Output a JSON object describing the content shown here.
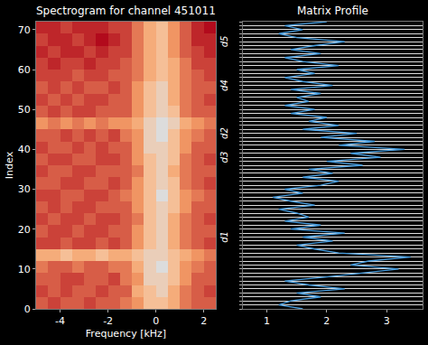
{
  "chart_data": [
    {
      "type": "heatmap",
      "title": "Spectrogram for channel 451011",
      "x_label": "Frequency [kHz]",
      "y_label": "Index",
      "x": [
        -4.75,
        -4.25,
        -3.75,
        -3.25,
        -2.75,
        -2.25,
        -1.75,
        -1.25,
        -0.75,
        -0.25,
        0.25,
        0.75,
        1.25,
        1.75,
        2.25
      ],
      "y": [
        1.5,
        4.5,
        7.5,
        10.5,
        13.5,
        16.5,
        19.5,
        22.5,
        25.5,
        28.5,
        31.5,
        34.5,
        37.5,
        40.5,
        43.5,
        46.5,
        49.5,
        52.5,
        55.5,
        58.5,
        61.5,
        64.5,
        67.5,
        70.5
      ],
      "z": [
        [
          6,
          7,
          6,
          6,
          7,
          6,
          6,
          5,
          4,
          2,
          2,
          3,
          5,
          6,
          6
        ],
        [
          7,
          6,
          7,
          6,
          6,
          7,
          6,
          6,
          3,
          2,
          1,
          3,
          5,
          6,
          7
        ],
        [
          6,
          6,
          7,
          7,
          6,
          6,
          7,
          5,
          4,
          1,
          1,
          2,
          4,
          6,
          6
        ],
        [
          5,
          6,
          6,
          5,
          6,
          6,
          5,
          5,
          3,
          1,
          0,
          2,
          4,
          5,
          6
        ],
        [
          3,
          3,
          2,
          3,
          3,
          2,
          3,
          3,
          2,
          1,
          1,
          2,
          3,
          4,
          5
        ],
        [
          7,
          7,
          6,
          7,
          7,
          6,
          7,
          6,
          4,
          2,
          1,
          3,
          5,
          6,
          7
        ],
        [
          6,
          7,
          7,
          6,
          7,
          7,
          6,
          6,
          4,
          2,
          1,
          3,
          5,
          6,
          6
        ],
        [
          7,
          6,
          7,
          7,
          6,
          7,
          7,
          6,
          5,
          2,
          1,
          3,
          5,
          6,
          7
        ],
        [
          6,
          7,
          6,
          7,
          7,
          6,
          6,
          6,
          4,
          2,
          1,
          2,
          4,
          6,
          6
        ],
        [
          7,
          7,
          6,
          6,
          7,
          7,
          6,
          5,
          4,
          2,
          0,
          2,
          4,
          5,
          6
        ],
        [
          6,
          6,
          7,
          7,
          6,
          6,
          7,
          6,
          4,
          2,
          1,
          2,
          5,
          6,
          7
        ],
        [
          7,
          6,
          6,
          7,
          7,
          6,
          6,
          6,
          5,
          2,
          1,
          3,
          5,
          6,
          6
        ],
        [
          6,
          7,
          7,
          6,
          6,
          7,
          7,
          6,
          4,
          2,
          1,
          2,
          5,
          6,
          7
        ],
        [
          7,
          6,
          6,
          7,
          6,
          7,
          6,
          6,
          4,
          1,
          1,
          2,
          4,
          6,
          6
        ],
        [
          6,
          6,
          7,
          6,
          7,
          6,
          7,
          5,
          4,
          1,
          0,
          2,
          4,
          5,
          6
        ],
        [
          4,
          5,
          4,
          5,
          4,
          5,
          4,
          4,
          3,
          1,
          0,
          1,
          3,
          4,
          5
        ],
        [
          6,
          7,
          6,
          7,
          7,
          6,
          6,
          6,
          4,
          2,
          1,
          2,
          5,
          6,
          6
        ],
        [
          7,
          6,
          7,
          6,
          7,
          7,
          6,
          6,
          4,
          2,
          1,
          3,
          5,
          6,
          7
        ],
        [
          6,
          7,
          6,
          7,
          6,
          6,
          7,
          6,
          4,
          2,
          1,
          3,
          5,
          6,
          6
        ],
        [
          7,
          7,
          7,
          6,
          7,
          7,
          6,
          6,
          5,
          3,
          2,
          3,
          5,
          6,
          7
        ],
        [
          7,
          8,
          7,
          7,
          8,
          7,
          7,
          6,
          5,
          3,
          2,
          3,
          5,
          7,
          7
        ],
        [
          8,
          7,
          8,
          8,
          7,
          8,
          7,
          7,
          5,
          3,
          2,
          4,
          6,
          7,
          8
        ],
        [
          7,
          8,
          8,
          7,
          8,
          9,
          8,
          7,
          5,
          3,
          2,
          4,
          6,
          8,
          8
        ],
        [
          8,
          8,
          7,
          8,
          8,
          8,
          7,
          7,
          5,
          3,
          2,
          4,
          6,
          8,
          9
        ]
      ],
      "xlim": [
        -5,
        2.5
      ],
      "ylim": [
        0,
        72
      ],
      "xticks": [
        -4,
        -2,
        0,
        2
      ],
      "yticks": [
        0,
        10,
        20,
        30,
        40,
        50,
        60,
        70
      ],
      "annotations": [
        {
          "text": "d1",
          "y": 18
        },
        {
          "text": "d3",
          "y": 38
        },
        {
          "text": "d2",
          "y": 44
        },
        {
          "text": "d4",
          "y": 56
        },
        {
          "text": "d5",
          "y": 67
        }
      ]
    },
    {
      "type": "line",
      "title": "Matrix Profile",
      "color": "#4a9fe0",
      "values": [
        1.6,
        1.2,
        1.4,
        1.9,
        1.5,
        2.3,
        1.7,
        1.3,
        2.0,
        2.6,
        3.2,
        2.4,
        2.7,
        3.4,
        2.2,
        1.8,
        1.5,
        2.1,
        1.6,
        2.3,
        1.4,
        1.9,
        1.3,
        1.7,
        1.5,
        1.2,
        1.8,
        1.4,
        1.1,
        1.6,
        1.3,
        1.9,
        2.2,
        1.6,
        2.1,
        1.7,
        2.6,
        2.0,
        2.9,
        2.4,
        3.3,
        2.2,
        2.8,
        1.9,
        2.5,
        1.6,
        2.2,
        1.7,
        2.0,
        1.4,
        1.8,
        1.3,
        1.7,
        1.5,
        1.9,
        1.4,
        2.1,
        1.6,
        1.3,
        1.8,
        1.5,
        2.2,
        1.6,
        1.3,
        1.9,
        1.4,
        1.8,
        2.3,
        1.5,
        1.2,
        1.6,
        1.3,
        2.0
      ],
      "xlim": [
        0.6,
        3.6
      ],
      "ylim": [
        0,
        72
      ],
      "xticks": [
        1,
        2,
        3
      ],
      "yticks": [
        0,
        1,
        2,
        3,
        4,
        5,
        6,
        7,
        8,
        9,
        10,
        11,
        12,
        13,
        14,
        15,
        16,
        17,
        18,
        19,
        20,
        21,
        22,
        23,
        24,
        25,
        26,
        27,
        28,
        29,
        30,
        31,
        32,
        33,
        34,
        35,
        36,
        37,
        38,
        39,
        40,
        41,
        42,
        43,
        44,
        45,
        46,
        47,
        48,
        49,
        50,
        51,
        52,
        53,
        54,
        55,
        56,
        57,
        58,
        59,
        60,
        61,
        62,
        63,
        64,
        65,
        66,
        67,
        68,
        69,
        70,
        71,
        72
      ],
      "grid": true,
      "tick_labels": "x"
    }
  ]
}
